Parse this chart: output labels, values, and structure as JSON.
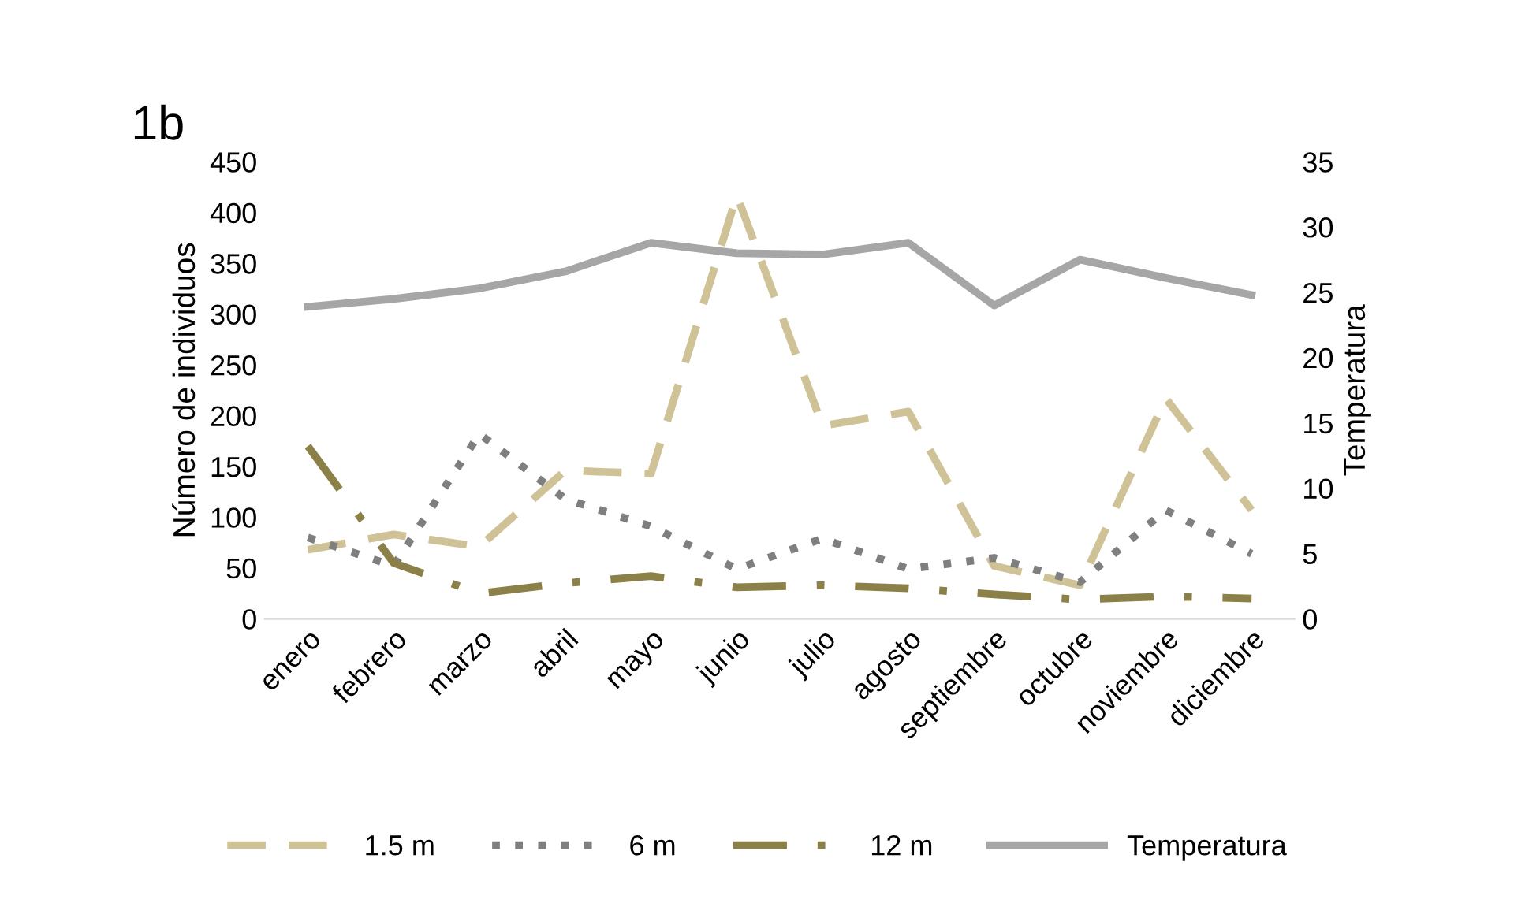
{
  "chart_data": {
    "type": "line",
    "title": "1b",
    "ylabel": "Número de individuos",
    "y2label": "Temperatura",
    "categories": [
      "enero",
      "febrero",
      "marzo",
      "abril",
      "mayo",
      "junio",
      "julio",
      "agosto",
      "septiembre",
      "octubre",
      "noviembre",
      "diciembre"
    ],
    "series": [
      {
        "name": "1.5 m",
        "color": "#cfc297",
        "line_style": "dashed",
        "values": [
          68,
          83,
          71,
          146,
          143,
          417,
          190,
          204,
          52,
          33,
          217,
          107
        ]
      },
      {
        "name": "6 m",
        "color": "#7f7f7f",
        "line_style": "dotted",
        "values": [
          80,
          52,
          182,
          118,
          91,
          49,
          79,
          49,
          60,
          36,
          107,
          64
        ]
      },
      {
        "name": "12 m",
        "color": "#8b8048",
        "line_style": "dashdot",
        "values": [
          170,
          55,
          25,
          35,
          42,
          31,
          33,
          30,
          24,
          19,
          22,
          20
        ]
      },
      {
        "name": "Temperatura",
        "color": "#a6a6a6",
        "line_style": "solid",
        "axis": "y2",
        "values": [
          23.9,
          24.5,
          25.3,
          26.6,
          28.8,
          28.0,
          27.9,
          28.8,
          24.0,
          27.5,
          26.1,
          24.8
        ]
      }
    ],
    "ylim": [
      0,
      450
    ],
    "yticks": [
      0,
      50,
      100,
      150,
      200,
      250,
      300,
      350,
      400,
      450
    ],
    "y2lim": [
      0,
      35
    ],
    "y2ticks": [
      0,
      5,
      10,
      15,
      20,
      25,
      30,
      35
    ],
    "grid": false,
    "legend": "bottom",
    "marker": "none"
  }
}
